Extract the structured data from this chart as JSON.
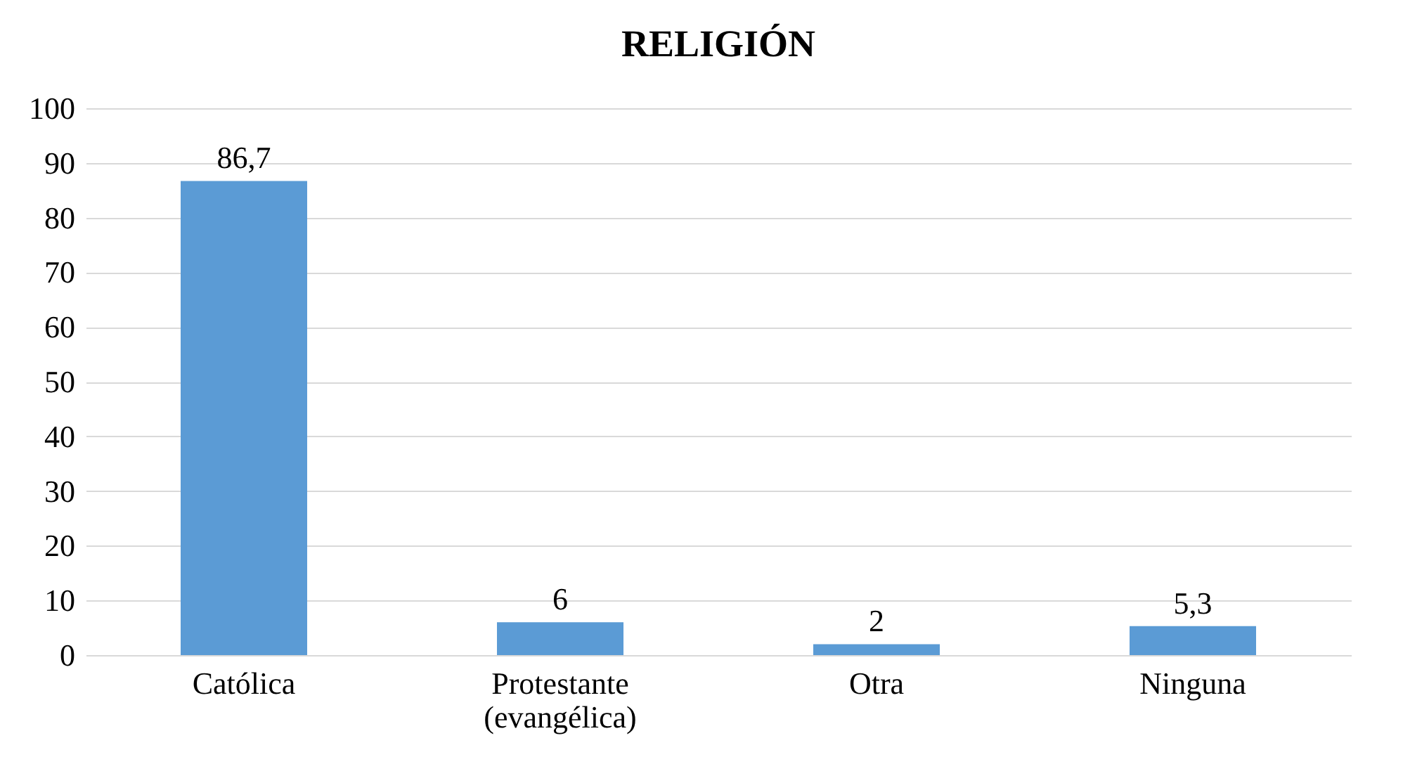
{
  "chart_data": {
    "type": "bar",
    "title": "RELIGIÓN",
    "categories": [
      "Católica",
      "Protestante\n(evangélica)",
      "Otra",
      "Ninguna"
    ],
    "values": [
      86.7,
      6,
      2,
      5.3
    ],
    "value_labels": [
      "86,7",
      "6",
      "2",
      "5,3"
    ],
    "color": "#5b9bd5",
    "ylim": [
      0,
      100
    ],
    "yticks": [
      0,
      10,
      20,
      30,
      40,
      50,
      60,
      70,
      80,
      90,
      100
    ],
    "grid": "y"
  }
}
